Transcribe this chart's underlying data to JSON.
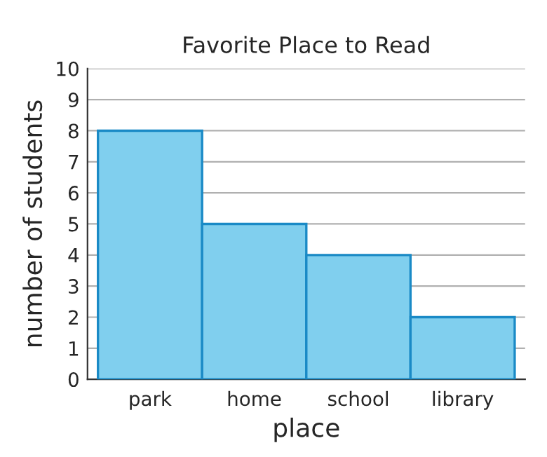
{
  "chart_data": {
    "type": "bar",
    "title": "Favorite Place to Read",
    "xlabel": "place",
    "ylabel": "number of students",
    "categories": [
      "park",
      "home",
      "school",
      "library"
    ],
    "values": [
      8,
      5,
      4,
      2
    ],
    "color": "#80cfee",
    "ylim": [
      0,
      10
    ],
    "yticks": [
      0,
      1,
      2,
      3,
      4,
      5,
      6,
      7,
      8,
      9,
      10
    ],
    "grid": "y"
  }
}
